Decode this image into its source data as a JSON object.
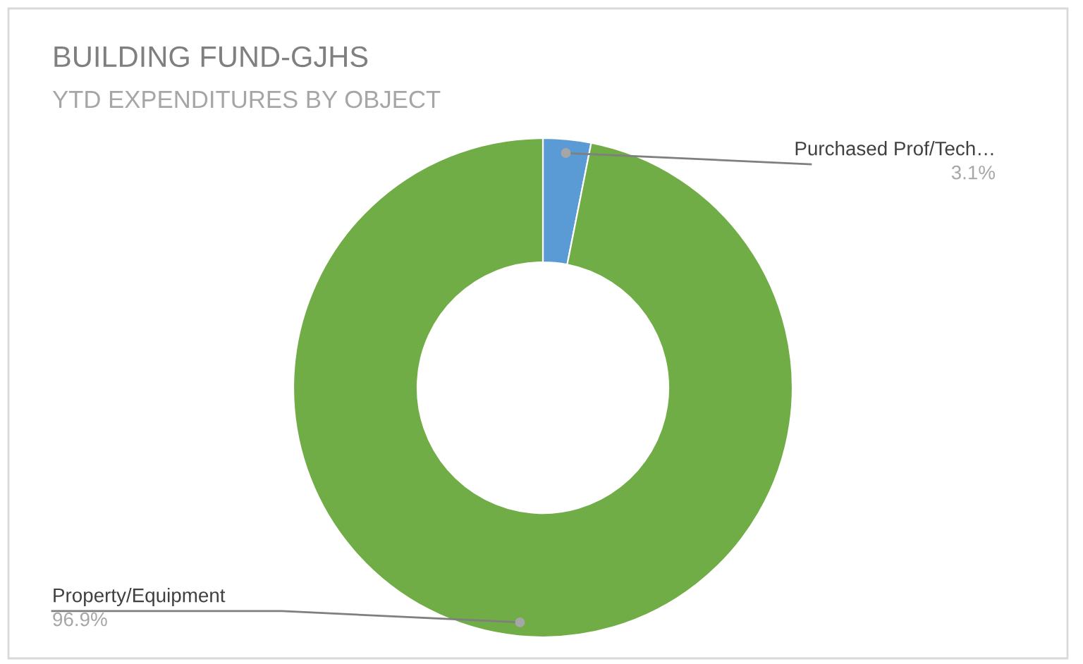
{
  "chart_data": {
    "type": "donut",
    "title": "BUILDING FUND-GJHS",
    "subtitle": "YTD EXPENDITURES BY OBJECT",
    "categories": [
      "Purchased Prof/Tech…",
      "Property/Equipment"
    ],
    "values": [
      3.1,
      96.9
    ],
    "colors": [
      "#5b9bd5",
      "#70ad47"
    ],
    "value_labels": [
      "3.1%",
      "96.9%"
    ]
  }
}
